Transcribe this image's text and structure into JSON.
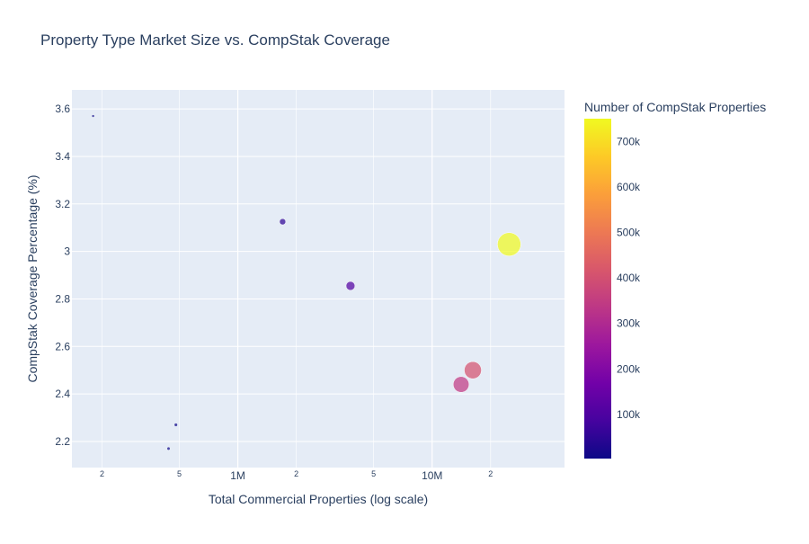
{
  "chart_data": {
    "type": "scatter",
    "title": "Property Type Market Size vs. CompStak Coverage",
    "xlabel": "Total Commercial Properties (log scale)",
    "ylabel": "CompStak Coverage Percentage (%)",
    "x_scale": "log",
    "xlim": [
      140000,
      48000000
    ],
    "ylim": [
      2.09,
      3.68
    ],
    "x_ticks": [
      {
        "value": 200000,
        "label": "2"
      },
      {
        "value": 500000,
        "label": "5"
      },
      {
        "value": 1000000,
        "label": "1M"
      },
      {
        "value": 2000000,
        "label": "2"
      },
      {
        "value": 5000000,
        "label": "5"
      },
      {
        "value": 10000000,
        "label": "10M"
      },
      {
        "value": 20000000,
        "label": "2"
      }
    ],
    "y_ticks": [
      {
        "value": 2.2,
        "label": "2.2"
      },
      {
        "value": 2.4,
        "label": "2.4"
      },
      {
        "value": 2.6,
        "label": "2.6"
      },
      {
        "value": 2.8,
        "label": "2.8"
      },
      {
        "value": 3.0,
        "label": "3"
      },
      {
        "value": 3.2,
        "label": "3.2"
      },
      {
        "value": 3.4,
        "label": "3.4"
      },
      {
        "value": 3.6,
        "label": "3.6"
      }
    ],
    "grid": true,
    "colorbar": {
      "title": "Number of CompStak Properties",
      "colorscale": "plasma",
      "range": [
        3000,
        750000
      ],
      "ticks": [
        {
          "value": 100000,
          "label": "100k"
        },
        {
          "value": 200000,
          "label": "200k"
        },
        {
          "value": 300000,
          "label": "300k"
        },
        {
          "value": 400000,
          "label": "400k"
        },
        {
          "value": 500000,
          "label": "500k"
        },
        {
          "value": 600000,
          "label": "600k"
        },
        {
          "value": 700000,
          "label": "700k"
        }
      ]
    },
    "points": [
      {
        "x": 180000,
        "y": 3.57,
        "size": 6400
      },
      {
        "x": 440000,
        "y": 2.17,
        "size": 9500
      },
      {
        "x": 480000,
        "y": 2.27,
        "size": 10900
      },
      {
        "x": 1700000,
        "y": 3.125,
        "size": 53000
      },
      {
        "x": 3800000,
        "y": 2.855,
        "size": 108500
      },
      {
        "x": 14100000,
        "y": 2.44,
        "size": 344000
      },
      {
        "x": 16200000,
        "y": 2.5,
        "size": 405000
      },
      {
        "x": 24900000,
        "y": 3.03,
        "size": 755000
      }
    ]
  }
}
